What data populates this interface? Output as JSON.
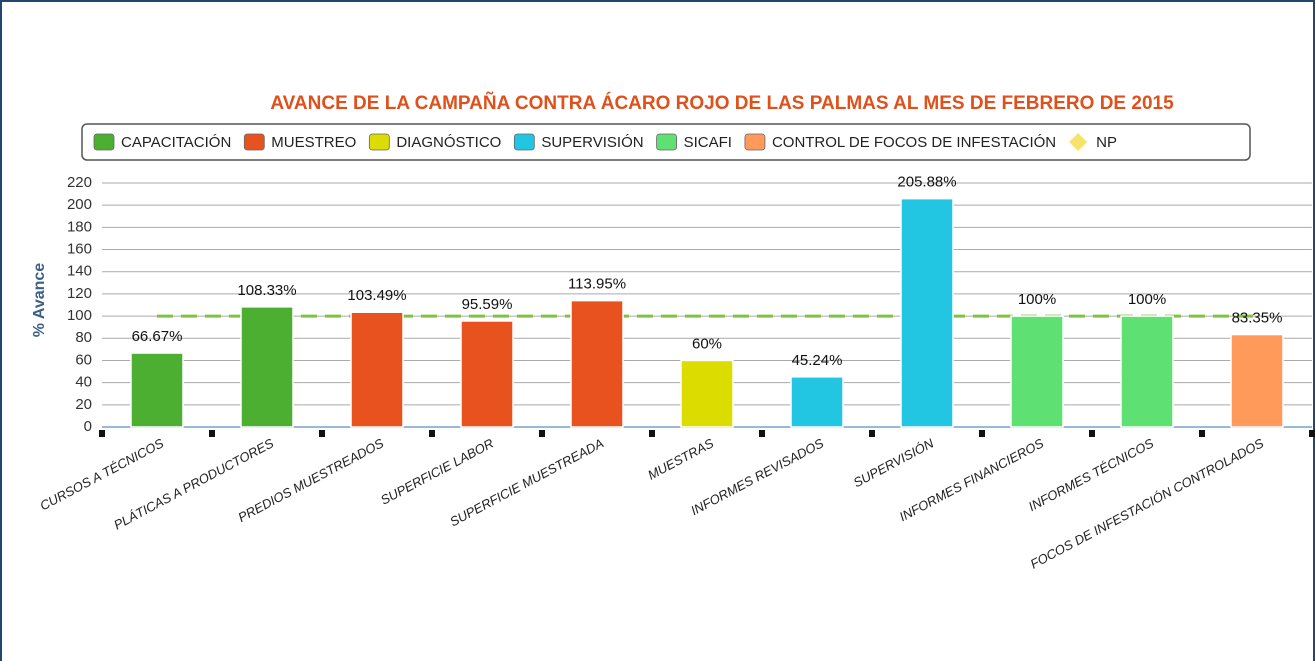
{
  "chart_data": {
    "type": "bar",
    "title": "AVANCE DE LA CAMPAÑA CONTRA ÁCARO ROJO DE LAS PALMAS AL MES DE FEBRERO DE 2015",
    "y_label": "% Avance",
    "categories": [
      "CURSOS A TÉCNICOS",
      "PLÁTICAS A PRODUCTORES",
      "PREDIOS MUESTREADOS",
      "SUPERFICIE LABOR",
      "SUPERFICIE MUESTREADA",
      "MUESTRAS",
      "INFORMES REVISADOS",
      "SUPERVISIÓN",
      "INFORMES FINANCIEROS",
      "INFORMES TÉCNICOS",
      "FOCOS DE INFESTACIÓN CONTROLADOS"
    ],
    "series": [
      {
        "name": "CAPACITACIÓN",
        "color": "#4caf32",
        "values": [
          66.67,
          108.33,
          null,
          null,
          null,
          null,
          null,
          null,
          null,
          null,
          null
        ],
        "value_labels": [
          "66.67%",
          "108.33%",
          null,
          null,
          null,
          null,
          null,
          null,
          null,
          null,
          null
        ]
      },
      {
        "name": "MUESTREO",
        "color": "#e8521e",
        "values": [
          null,
          null,
          103.49,
          95.59,
          113.95,
          null,
          null,
          null,
          null,
          null,
          null
        ],
        "value_labels": [
          null,
          null,
          "103.49%",
          "95.59%",
          "113.95%",
          null,
          null,
          null,
          null,
          null,
          null
        ]
      },
      {
        "name": "DIAGNÓSTICO",
        "color": "#dcdc00",
        "values": [
          null,
          null,
          null,
          null,
          null,
          60,
          null,
          null,
          null,
          null,
          null
        ],
        "value_labels": [
          null,
          null,
          null,
          null,
          null,
          "60%",
          null,
          null,
          null,
          null,
          null
        ]
      },
      {
        "name": "SUPERVISIÓN",
        "color": "#22c6e2",
        "values": [
          null,
          null,
          null,
          null,
          null,
          null,
          45.24,
          205.88,
          null,
          null,
          null
        ],
        "value_labels": [
          null,
          null,
          null,
          null,
          null,
          null,
          "45.24%",
          "205.88%",
          null,
          null,
          null
        ]
      },
      {
        "name": "SICAFI",
        "color": "#5fe072",
        "values": [
          null,
          null,
          null,
          null,
          null,
          null,
          null,
          null,
          100,
          100,
          null
        ],
        "value_labels": [
          null,
          null,
          null,
          null,
          null,
          null,
          null,
          null,
          "100%",
          "100%",
          null
        ]
      },
      {
        "name": "CONTROL DE FOCOS DE INFESTACIÓN",
        "color": "#ff9a5a",
        "values": [
          null,
          null,
          null,
          null,
          null,
          null,
          null,
          null,
          null,
          null,
          83.35
        ],
        "value_labels": [
          null,
          null,
          null,
          null,
          null,
          null,
          null,
          null,
          null,
          null,
          "83.35%"
        ]
      },
      {
        "name": "NP",
        "type": "line",
        "color": "#f7e36a",
        "line_color": "#7dc242",
        "values": [
          100,
          100,
          100,
          100,
          100,
          100,
          100,
          100,
          100,
          100,
          100
        ]
      }
    ],
    "ylim": [
      0,
      220
    ],
    "yticks": [
      0,
      20,
      40,
      60,
      80,
      100,
      120,
      140,
      160,
      180,
      200,
      220
    ],
    "grid": true
  }
}
